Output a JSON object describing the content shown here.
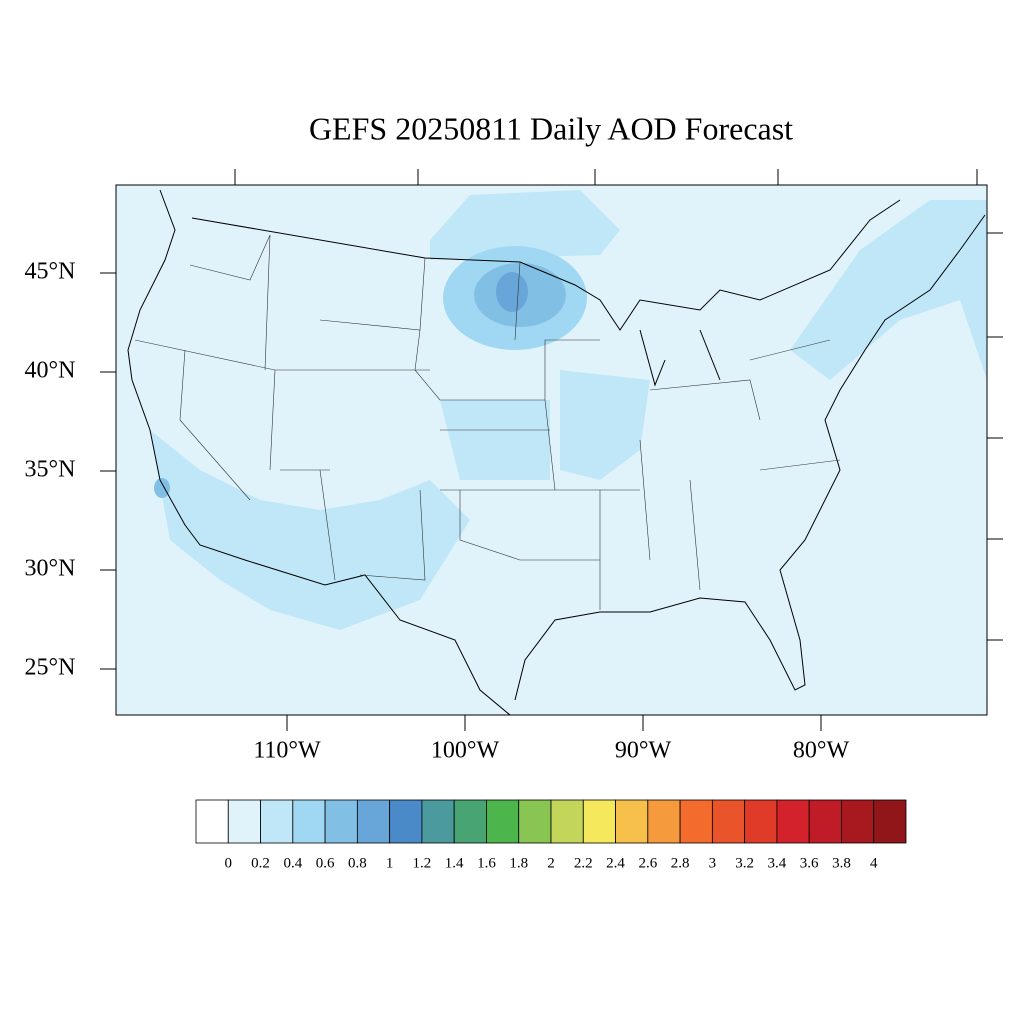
{
  "title": "GEFS 20250811 Daily AOD Forecast",
  "lat_ticks": [
    {
      "value": 45,
      "label": "45°N"
    },
    {
      "value": 40,
      "label": "40°N"
    },
    {
      "value": 35,
      "label": "35°N"
    },
    {
      "value": 30,
      "label": "30°N"
    },
    {
      "value": 25,
      "label": "25°N"
    }
  ],
  "lon_ticks": [
    {
      "value": -110,
      "label": "110°W"
    },
    {
      "value": -100,
      "label": "100°W"
    },
    {
      "value": -90,
      "label": "90°W"
    },
    {
      "value": -80,
      "label": "80°W"
    }
  ],
  "colorbar": {
    "colors": [
      "#ffffff",
      "#e0f3fb",
      "#bfe7f7",
      "#a0d8f3",
      "#82bfe5",
      "#68a6da",
      "#4a8ac8",
      "#4a9a9e",
      "#48a472",
      "#4cb54b",
      "#88c553",
      "#c3d65a",
      "#f6e85d",
      "#f7c04b",
      "#f69a3e",
      "#f36b2d",
      "#e9542b",
      "#df3b28",
      "#d3222b",
      "#c01c27",
      "#a8181f",
      "#90161a"
    ],
    "ticks": [
      0,
      0.2,
      0.4,
      0.6,
      0.8,
      1,
      1.2,
      1.4,
      1.6,
      1.8,
      2,
      2.2,
      2.4,
      2.6,
      2.8,
      3,
      3.2,
      3.4,
      3.6,
      3.8,
      4
    ]
  }
}
